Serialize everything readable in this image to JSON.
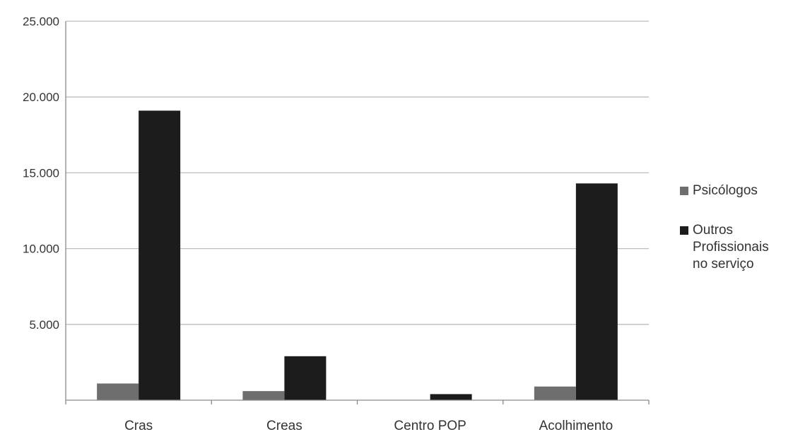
{
  "chart_data": {
    "type": "bar",
    "title": "",
    "xlabel": "",
    "ylabel": "",
    "categories": [
      "Cras",
      "Creas",
      "Centro POP",
      "Acolhimento"
    ],
    "series": [
      {
        "name": "Psicólogos",
        "values": [
          1100,
          600,
          0,
          900
        ],
        "color": "#6e6e6e"
      },
      {
        "name": "Outros Profissionais no serviço",
        "values": [
          19100,
          2900,
          400,
          14300
        ],
        "color": "#1c1c1c"
      }
    ],
    "ylim": [
      0,
      25000
    ],
    "yticks": [
      0,
      5000,
      10000,
      15000,
      20000,
      25000
    ],
    "ytick_labels": [
      "",
      "5.000",
      "10.000",
      "15.000",
      "20.000",
      "25.000"
    ],
    "grid": true,
    "legend_position": "right"
  },
  "legend": {
    "items": [
      {
        "label_lines": [
          "Psicólogos"
        ]
      },
      {
        "label_lines": [
          "Outros",
          "Profissionais",
          "no serviço"
        ]
      }
    ]
  },
  "colors": {
    "grid": "#bdbdbd",
    "axis": "#8a8a8a"
  }
}
